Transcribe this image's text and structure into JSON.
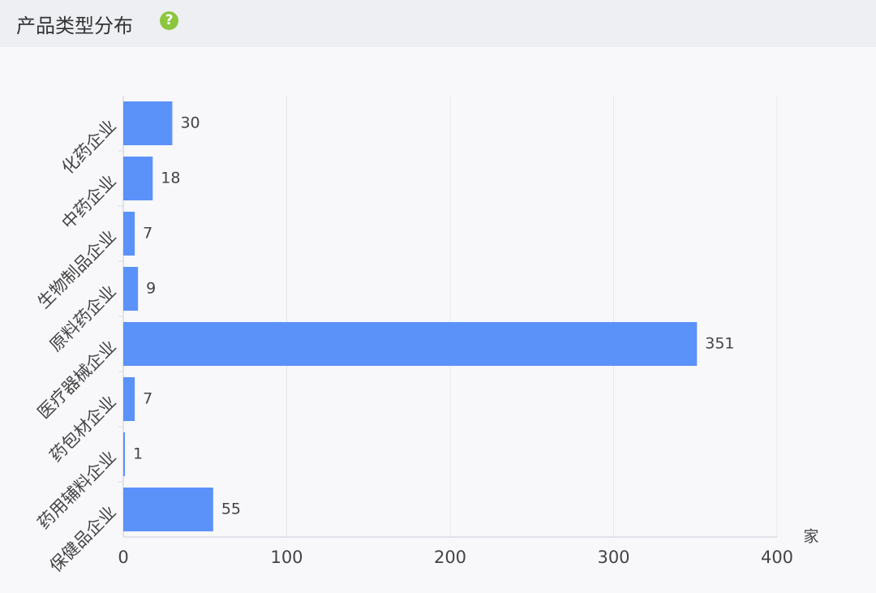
{
  "header": {
    "title": "产品类型分布",
    "help_icon": "?"
  },
  "chart_data": {
    "type": "bar",
    "orientation": "horizontal",
    "categories": [
      "化药企业",
      "中药企业",
      "生物制品企业",
      "原料药企业",
      "医疗器械企业",
      "药包材企业",
      "药用辅料企业",
      "保健品企业"
    ],
    "values": [
      30,
      18,
      7,
      9,
      351,
      7,
      1,
      55
    ],
    "color": "#5b92fa",
    "x_unit": "家",
    "xlim": [
      0,
      400
    ],
    "xticks": [
      0,
      100,
      200,
      300,
      400
    ],
    "grid": true
  }
}
